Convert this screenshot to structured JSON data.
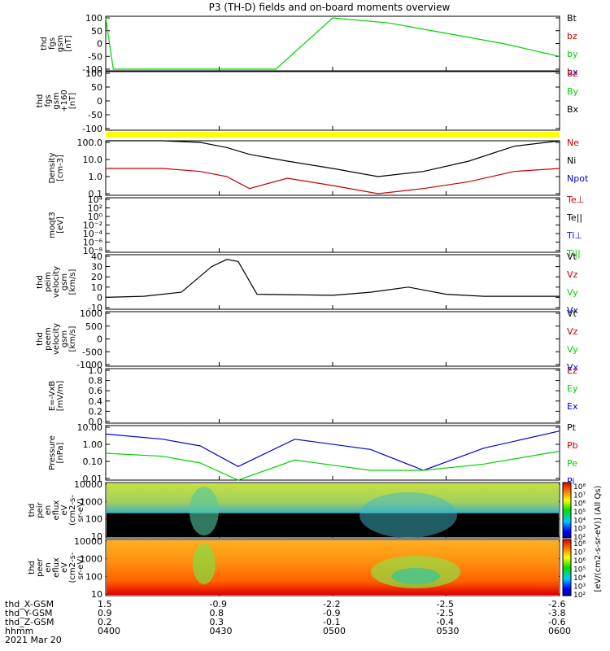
{
  "title": "P3 (TH-D) fields and on-board moments overview",
  "colors": {
    "black": "#000000",
    "red": "#c80000",
    "green": "#00d200",
    "blue": "#0000d2",
    "yellow": "#ffff00"
  },
  "panels": [
    {
      "id": "fgs",
      "ylabel": [
        "thd",
        "fgs",
        "gsm",
        "[nT]"
      ],
      "yticks": [
        "100",
        "50",
        "0",
        "-50",
        "-100"
      ],
      "legend": [
        {
          "t": "Bt",
          "c": "black"
        },
        {
          "t": "bz",
          "c": "red"
        },
        {
          "t": "by",
          "c": "green"
        },
        {
          "t": "bx",
          "c": "blue"
        }
      ]
    },
    {
      "id": "fgs_zoom",
      "ylabel": [
        "thd",
        "fgs",
        "gsm",
        "+160",
        "[nT]"
      ],
      "yticks": [
        "100",
        "50",
        "0",
        "-50",
        "-100"
      ],
      "legend": [
        {
          "t": "Bz",
          "c": "red"
        },
        {
          "t": "By",
          "c": "green"
        },
        {
          "t": "Bx",
          "c": "black"
        }
      ]
    },
    {
      "id": "density",
      "ylabel": [
        "Density",
        "[cm-3]"
      ],
      "yticks": [
        "100.0",
        "10.0",
        "1.0",
        "0.1"
      ],
      "legend": [
        {
          "t": "Ne",
          "c": "red"
        },
        {
          "t": "Ni",
          "c": "black"
        },
        {
          "t": "Npot",
          "c": "blue"
        }
      ]
    },
    {
      "id": "temp",
      "ylabel": [
        "moqt3",
        "[eV]"
      ],
      "yticks": [
        "10⁴",
        "10²",
        "10⁰",
        "10⁻²",
        "10⁻⁴",
        "10⁻⁶",
        "10⁻⁸"
      ],
      "legend": [
        {
          "t": "Te⊥",
          "c": "red"
        },
        {
          "t": "Te||",
          "c": "black"
        },
        {
          "t": "Ti⊥",
          "c": "blue"
        },
        {
          "t": "Ti||",
          "c": "green"
        }
      ]
    },
    {
      "id": "ivel",
      "ylabel": [
        "thd",
        "peim",
        "velocity",
        "gsm",
        "[km/s]"
      ],
      "yticks": [
        "40",
        "30",
        "20",
        "10",
        "0",
        "-10"
      ],
      "legend": [
        {
          "t": "Vt",
          "c": "black"
        },
        {
          "t": "Vz",
          "c": "red"
        },
        {
          "t": "Vy",
          "c": "green"
        },
        {
          "t": "Vx",
          "c": "blue"
        }
      ]
    },
    {
      "id": "evel",
      "ylabel": [
        "thd",
        "peem",
        "velocity",
        "gsm",
        "[km/s]"
      ],
      "yticks": [
        "1000",
        "500",
        "0",
        "-500",
        "-1000"
      ],
      "legend": [
        {
          "t": "Vt",
          "c": "black"
        },
        {
          "t": "Vz",
          "c": "red"
        },
        {
          "t": "Vy",
          "c": "green"
        },
        {
          "t": "Vx",
          "c": "blue"
        }
      ]
    },
    {
      "id": "efield",
      "ylabel": [
        "E=-VxB",
        "[mV/m]"
      ],
      "yticks": [
        "1.0",
        "0.8",
        "0.6",
        "0.4",
        "0.2",
        "0.0"
      ],
      "legend": [
        {
          "t": "Ez",
          "c": "red"
        },
        {
          "t": "Ey",
          "c": "green"
        },
        {
          "t": "Ex",
          "c": "blue"
        }
      ]
    },
    {
      "id": "pressure",
      "ylabel": [
        "Pressure",
        "[nPa]"
      ],
      "yticks": [
        "10.00",
        "1.00",
        "0.10",
        "0.01"
      ],
      "legend": [
        {
          "t": "Pt",
          "c": "black"
        },
        {
          "t": "Pb",
          "c": "red"
        },
        {
          "t": "Pe",
          "c": "green"
        },
        {
          "t": "Pi",
          "c": "blue"
        }
      ]
    },
    {
      "id": "ispec",
      "ylabel": [
        "thd",
        "peir",
        "en",
        "eflux",
        "eV",
        "(cm2-s-",
        "sr-eV)"
      ],
      "yticks": [
        "10000",
        "1000",
        "100",
        "10"
      ],
      "legend": []
    },
    {
      "id": "espec",
      "ylabel": [
        "thd",
        "peer",
        "en",
        "eflux",
        "eV",
        "(cm2-s-",
        "sr-eV)"
      ],
      "yticks": [
        "10000",
        "1000",
        "100",
        "10"
      ],
      "legend": []
    }
  ],
  "colorbar": {
    "ticks": [
      "10⁸",
      "10⁷",
      "10⁶",
      "10⁵",
      "10⁴",
      "10³",
      "10²"
    ],
    "label": "[eV/(cm2-s-sr-eV)] (All Qs)"
  },
  "xaxis": {
    "rows": [
      {
        "label": "thd_X-GSM",
        "values": [
          "1.5",
          "-0.9",
          "-2.2",
          "-2.5",
          "-2.6"
        ]
      },
      {
        "label": "thd_Y-GSM",
        "values": [
          "0.9",
          "0.8",
          "-0.9",
          "-2.5",
          "-3.8"
        ]
      },
      {
        "label": "thd_Z-GSM",
        "values": [
          "0.2",
          "0.3",
          "-0.1",
          "-0.4",
          "-0.6"
        ]
      },
      {
        "label": "hhmm",
        "values": [
          "0400",
          "0430",
          "0500",
          "0530",
          "0600"
        ]
      }
    ],
    "date": "2021 Mar 20"
  },
  "chart_data": {
    "type": "line",
    "title": "P3 (TH-D) fields and on-board moments overview",
    "time_range_hhmm": [
      "0400",
      "0600"
    ],
    "x_ticks_hhmm": [
      "0400",
      "0430",
      "0500",
      "0530",
      "0600"
    ],
    "series": [
      {
        "panel": "fgs",
        "name": "by",
        "color": "green",
        "x_min": [
          0,
          2,
          5,
          15,
          30,
          45,
          60,
          75,
          90,
          105,
          120
        ],
        "y": [
          100,
          -100,
          -100,
          -100,
          -100,
          -100,
          100,
          80,
          40,
          0,
          -50
        ]
      },
      {
        "panel": "density",
        "name": "Ni",
        "color": "black",
        "x_min": [
          0,
          15,
          25,
          32,
          38,
          48,
          60,
          72,
          84,
          96,
          108,
          120
        ],
        "y": [
          150,
          140,
          100,
          50,
          20,
          8,
          3,
          1,
          2,
          8,
          60,
          150
        ]
      },
      {
        "panel": "density",
        "name": "Ne",
        "color": "red",
        "x_min": [
          0,
          15,
          25,
          32,
          38,
          48,
          60,
          72,
          84,
          96,
          108,
          120
        ],
        "y": [
          3,
          3,
          2,
          1,
          0.2,
          0.8,
          0.3,
          0.1,
          0.2,
          0.5,
          2,
          3
        ]
      },
      {
        "panel": "ivel",
        "name": "Vt",
        "color": "black",
        "x_min": [
          0,
          10,
          20,
          28,
          32,
          35,
          40,
          60,
          70,
          80,
          90,
          100,
          120
        ],
        "y": [
          0,
          1,
          5,
          30,
          37,
          35,
          3,
          2,
          5,
          10,
          3,
          1,
          1
        ]
      },
      {
        "panel": "pressure",
        "name": "Pi",
        "color": "blue",
        "x_min": [
          0,
          15,
          25,
          35,
          50,
          70,
          84,
          100,
          120
        ],
        "y": [
          4,
          2,
          0.8,
          0.05,
          2,
          0.5,
          0.03,
          0.6,
          6
        ]
      },
      {
        "panel": "pressure",
        "name": "Pe",
        "color": "green",
        "x_min": [
          0,
          15,
          25,
          35,
          50,
          70,
          84,
          100,
          120
        ],
        "y": [
          0.3,
          0.2,
          0.08,
          0.008,
          0.12,
          0.03,
          0.03,
          0.07,
          0.4
        ]
      }
    ]
  }
}
